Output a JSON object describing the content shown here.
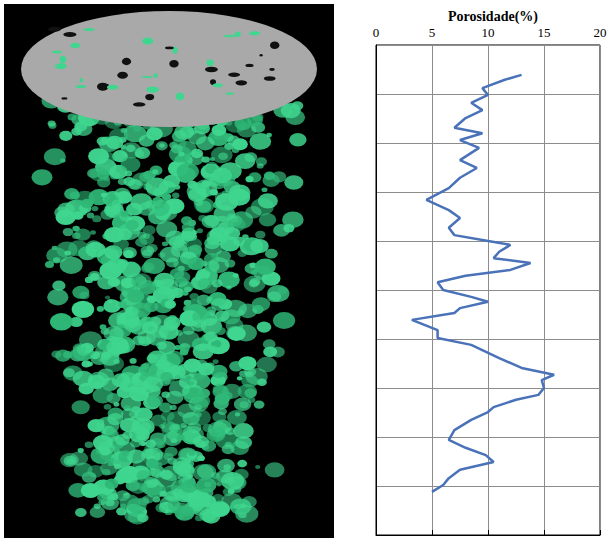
{
  "chart_data": {
    "type": "line",
    "title": "Porosidade(%)",
    "color": "#4a72b8",
    "x": [
      13.0,
      11.5,
      9.5,
      10.0,
      8.5,
      9.5,
      8.0,
      7.0,
      9.5,
      7.5,
      9.2,
      7.5,
      9.0,
      7.5,
      6.5,
      4.5,
      6.5,
      7.5,
      6.5,
      7.0,
      9.5,
      12.0,
      11.0,
      10.5,
      13.8,
      12.0,
      8.0,
      5.5,
      6.0,
      8.5,
      10.0,
      7.5,
      7.0,
      3.2,
      5.5,
      5.5,
      8.5,
      11.0,
      13.0,
      15.9,
      14.8,
      15.0,
      14.5,
      12.5,
      10.5,
      10.0,
      8.5,
      7.0,
      6.5,
      8.0,
      9.8,
      10.5,
      7.5,
      6.5,
      6.0,
      5.0
    ],
    "y": [
      9.39,
      9.29,
      9.12,
      8.98,
      8.82,
      8.67,
      8.51,
      8.31,
      8.2,
      8.06,
      7.9,
      7.65,
      7.49,
      7.29,
      7.08,
      6.84,
      6.63,
      6.47,
      6.27,
      6.12,
      6.02,
      5.92,
      5.78,
      5.65,
      5.55,
      5.41,
      5.29,
      5.16,
      5.0,
      4.86,
      4.76,
      4.63,
      4.53,
      4.39,
      4.18,
      4.02,
      3.88,
      3.61,
      3.41,
      3.27,
      3.16,
      3.0,
      2.86,
      2.76,
      2.61,
      2.51,
      2.35,
      2.14,
      1.94,
      1.78,
      1.63,
      1.49,
      1.33,
      1.16,
      1.02,
      0.88
    ],
    "xlim": [
      0,
      20
    ],
    "xticks": [
      0,
      5,
      10,
      15,
      20
    ],
    "ylim": [
      0,
      10
    ],
    "yticks": [
      0,
      1,
      2,
      3,
      4,
      5,
      6,
      7,
      8,
      9,
      10
    ],
    "grid": true,
    "tick_labels": "x"
  }
}
